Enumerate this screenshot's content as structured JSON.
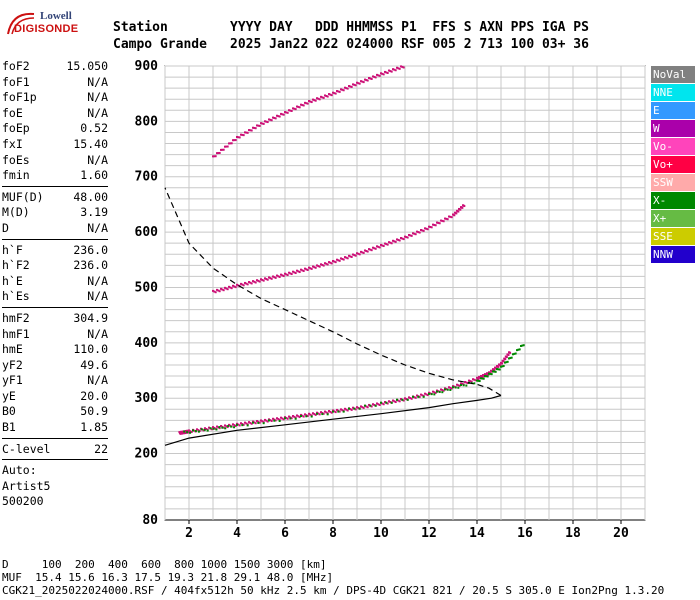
{
  "logo": {
    "line1": "Lowell",
    "line2": "DIGISONDE"
  },
  "header": {
    "row1": [
      {
        "text": "Station"
      },
      {
        "text": "YYYY DAY"
      },
      {
        "text": "DDD HHMMSS P1  FFS S AXN PPS IGA PS"
      }
    ],
    "row2": [
      {
        "text": "Campo Grande"
      },
      {
        "text": "2025 Jan22"
      },
      {
        "text": "022 024000 RSF 005 2 713 100 03+ 36"
      }
    ]
  },
  "sidebar": {
    "groups": [
      [
        {
          "label": "foF2",
          "value": "15.050"
        },
        {
          "label": "foF1",
          "value": "N/A"
        },
        {
          "label": "foF1p",
          "value": "N/A"
        },
        {
          "label": "foE",
          "value": "N/A"
        },
        {
          "label": "foEp",
          "value": "0.52"
        },
        {
          "label": "fxI",
          "value": "15.40"
        },
        {
          "label": "foEs",
          "value": "N/A"
        },
        {
          "label": "fmin",
          "value": "1.60"
        }
      ],
      [
        {
          "label": "MUF(D)",
          "value": "48.00"
        },
        {
          "label": "M(D)",
          "value": "3.19"
        },
        {
          "label": "D",
          "value": "N/A"
        }
      ],
      [
        {
          "label": "h`F",
          "value": "236.0"
        },
        {
          "label": "h`F2",
          "value": "236.0"
        },
        {
          "label": "h`E",
          "value": "N/A"
        },
        {
          "label": "h`Es",
          "value": "N/A"
        }
      ],
      [
        {
          "label": "hmF2",
          "value": "304.9"
        },
        {
          "label": "hmF1",
          "value": "N/A"
        },
        {
          "label": "hmE",
          "value": "110.0"
        },
        {
          "label": "yF2",
          "value": "49.6"
        },
        {
          "label": "yF1",
          "value": "N/A"
        },
        {
          "label": "yE",
          "value": "20.0"
        },
        {
          "label": "B0",
          "value": "50.9"
        },
        {
          "label": "B1",
          "value": "1.85"
        }
      ],
      [
        {
          "label": "C-level",
          "value": "22"
        }
      ]
    ],
    "auto": [
      "Auto:",
      "Artist5",
      "500200"
    ]
  },
  "legend": [
    {
      "label": "NoVal",
      "color": "#808080"
    },
    {
      "label": "NNE",
      "color": "#00e5ee"
    },
    {
      "label": "E",
      "color": "#3399ff"
    },
    {
      "label": "W",
      "color": "#aa00aa"
    },
    {
      "label": "Vo-",
      "color": "#ff44bb"
    },
    {
      "label": "Vo+",
      "color": "#ff0044"
    },
    {
      "label": "SSW",
      "color": "#ffaaaa"
    },
    {
      "label": "X-",
      "color": "#008800"
    },
    {
      "label": "X+",
      "color": "#66bb44"
    },
    {
      "label": "SSE",
      "color": "#cccc00"
    },
    {
      "label": "NNW",
      "color": "#2200cc"
    }
  ],
  "footer": {
    "line1": "D     100  200  400  600  800 1000 1500 3000 [km]",
    "line2": "MUF  15.4 15.6 16.3 17.5 19.3 21.8 29.1 48.0 [MHz]",
    "line3": "CGK21_2025022024000.RSF / 404fx512h 50 kHz 2.5 km / DPS-4D CGK21 821 / 20.5 S 305.0 E Ion2Png 1.3.20"
  },
  "chart_data": {
    "type": "scatter",
    "xlim": [
      1,
      21
    ],
    "ylim": [
      80,
      900
    ],
    "x_ticks": [
      2,
      4,
      6,
      8,
      10,
      12,
      14,
      16,
      18,
      20
    ],
    "y_ticks": [
      80,
      200,
      300,
      400,
      500,
      600,
      700,
      800,
      900
    ],
    "grid": true,
    "series": [
      {
        "color": "#cc1177",
        "style": "dots",
        "points": [
          [
            1.6,
            237
          ],
          [
            2,
            240
          ],
          [
            3,
            246
          ],
          [
            4,
            252
          ],
          [
            5,
            258
          ],
          [
            6,
            264
          ],
          [
            7,
            270
          ],
          [
            8,
            276
          ],
          [
            9,
            282
          ],
          [
            10,
            290
          ],
          [
            11,
            298
          ],
          [
            12,
            308
          ],
          [
            13,
            320
          ],
          [
            14,
            335
          ],
          [
            14.5,
            345
          ],
          [
            15,
            362
          ],
          [
            15.4,
            385
          ]
        ]
      },
      {
        "color": "#008800",
        "style": "dots",
        "points": [
          [
            1.8,
            238
          ],
          [
            4,
            250
          ],
          [
            8,
            274
          ],
          [
            12,
            306
          ],
          [
            14,
            330
          ],
          [
            15,
            355
          ],
          [
            16,
            400
          ]
        ]
      },
      {
        "color": "#cc1177",
        "style": "dots",
        "points": [
          [
            3,
            492
          ],
          [
            4,
            503
          ],
          [
            5,
            513
          ],
          [
            6,
            523
          ],
          [
            7,
            534
          ],
          [
            8,
            546
          ],
          [
            9,
            560
          ],
          [
            10,
            575
          ],
          [
            11,
            590
          ],
          [
            12,
            608
          ],
          [
            13,
            630
          ],
          [
            13.5,
            650
          ]
        ]
      },
      {
        "color": "#cc1177",
        "style": "dots",
        "points": [
          [
            3,
            735
          ],
          [
            4,
            770
          ],
          [
            5,
            795
          ],
          [
            6,
            815
          ],
          [
            7,
            835
          ],
          [
            8,
            850
          ],
          [
            9,
            868
          ],
          [
            10,
            885
          ],
          [
            11,
            900
          ]
        ]
      },
      {
        "color": "#000000",
        "style": "solid",
        "points": [
          [
            1,
            215
          ],
          [
            2,
            228
          ],
          [
            4,
            242
          ],
          [
            6,
            252
          ],
          [
            8,
            262
          ],
          [
            10,
            272
          ],
          [
            12,
            283
          ],
          [
            13,
            290
          ],
          [
            14,
            296
          ],
          [
            14.6,
            300
          ],
          [
            15,
            304.9
          ]
        ]
      },
      {
        "color": "#000000",
        "style": "dashed",
        "points": [
          [
            15,
            304.9
          ],
          [
            14.5,
            318
          ],
          [
            14,
            325
          ],
          [
            13,
            333
          ],
          [
            12,
            345
          ],
          [
            11,
            360
          ],
          [
            10,
            378
          ],
          [
            9,
            398
          ],
          [
            8,
            420
          ],
          [
            7,
            440
          ],
          [
            6,
            460
          ],
          [
            5,
            480
          ],
          [
            4,
            505
          ],
          [
            3,
            535
          ],
          [
            2,
            580
          ],
          [
            1,
            680
          ]
        ]
      }
    ]
  }
}
